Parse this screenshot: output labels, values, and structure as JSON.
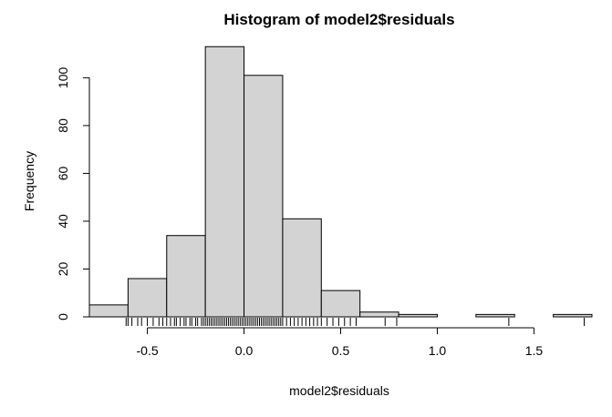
{
  "chart_data": {
    "type": "bar",
    "title": "Histogram of model2$residuals",
    "xlabel": "model2$residuals",
    "ylabel": "Frequency",
    "xlim": [
      -0.8,
      1.8
    ],
    "ylim": [
      0,
      115
    ],
    "bin_edges": [
      -0.8,
      -0.6,
      -0.4,
      -0.2,
      0.0,
      0.2,
      0.4,
      0.6,
      0.8,
      1.0,
      1.2,
      1.4,
      1.6,
      1.8
    ],
    "values": [
      5,
      16,
      34,
      113,
      101,
      41,
      11,
      2,
      1,
      0,
      1,
      0,
      1
    ],
    "x_ticks": [
      -0.5,
      0.0,
      0.5,
      1.0,
      1.5
    ],
    "x_tick_labels": [
      "-0.5",
      "0.0",
      "0.5",
      "1.0",
      "1.5"
    ],
    "y_ticks": [
      0,
      20,
      40,
      60,
      80,
      100
    ],
    "y_tick_labels": [
      "0",
      "20",
      "40",
      "60",
      "80",
      "100"
    ],
    "rug": [
      -0.61,
      -0.6,
      -0.58,
      -0.55,
      -0.53,
      -0.5,
      -0.47,
      -0.44,
      -0.42,
      -0.4,
      -0.38,
      -0.36,
      -0.35,
      -0.33,
      -0.31,
      -0.3,
      -0.28,
      -0.27,
      -0.25,
      -0.24,
      -0.22,
      -0.21,
      -0.2,
      -0.19,
      -0.18,
      -0.17,
      -0.16,
      -0.15,
      -0.14,
      -0.13,
      -0.12,
      -0.11,
      -0.1,
      -0.09,
      -0.08,
      -0.07,
      -0.06,
      -0.05,
      -0.04,
      -0.03,
      -0.02,
      -0.01,
      0.0,
      0.01,
      0.02,
      0.03,
      0.04,
      0.05,
      0.06,
      0.07,
      0.08,
      0.09,
      0.1,
      0.11,
      0.12,
      0.13,
      0.14,
      0.15,
      0.16,
      0.17,
      0.18,
      0.19,
      0.2,
      0.22,
      0.24,
      0.26,
      0.28,
      0.3,
      0.32,
      0.34,
      0.36,
      0.38,
      0.4,
      0.43,
      0.46,
      0.49,
      0.52,
      0.55,
      0.58,
      0.73,
      0.79,
      1.37,
      1.76
    ],
    "bar_fill": "#d3d3d3",
    "bar_stroke": "#000000",
    "grid": false,
    "legend": "none"
  }
}
